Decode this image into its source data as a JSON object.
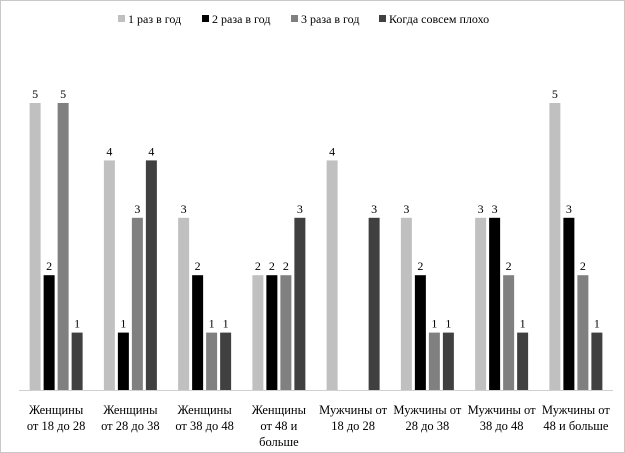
{
  "chart_data": {
    "type": "bar",
    "title": "",
    "xlabel": "",
    "ylabel": "",
    "ylim": [
      0,
      5.2
    ],
    "grid": false,
    "legend_position": "top",
    "categories": [
      [
        "Женщины",
        "от 18 до 28"
      ],
      [
        "Женщины",
        "от 28 до 38"
      ],
      [
        "Женщины",
        "от 38 до 48"
      ],
      [
        "Женщины",
        "от 48 и",
        "больше"
      ],
      [
        "Мужчины от",
        "18 до 28"
      ],
      [
        "Мужчины от",
        "28 до 38"
      ],
      [
        "Мужчины от",
        "38 до 48"
      ],
      [
        "Мужчины от",
        "48 и больше"
      ]
    ],
    "series": [
      {
        "name": "1 раз в год",
        "color": "#c0c0c0",
        "values": [
          5,
          4,
          3,
          2,
          4,
          3,
          3,
          5
        ]
      },
      {
        "name": "2 раза в год",
        "color": "#000000",
        "values": [
          2,
          1,
          2,
          2,
          null,
          2,
          3,
          3
        ]
      },
      {
        "name": "3 раза в год",
        "color": "#808080",
        "values": [
          5,
          3,
          1,
          2,
          null,
          1,
          2,
          2
        ]
      },
      {
        "name": "Когда совсем плохо",
        "color": "#404040",
        "values": [
          1,
          4,
          1,
          3,
          3,
          1,
          1,
          1
        ]
      }
    ]
  }
}
